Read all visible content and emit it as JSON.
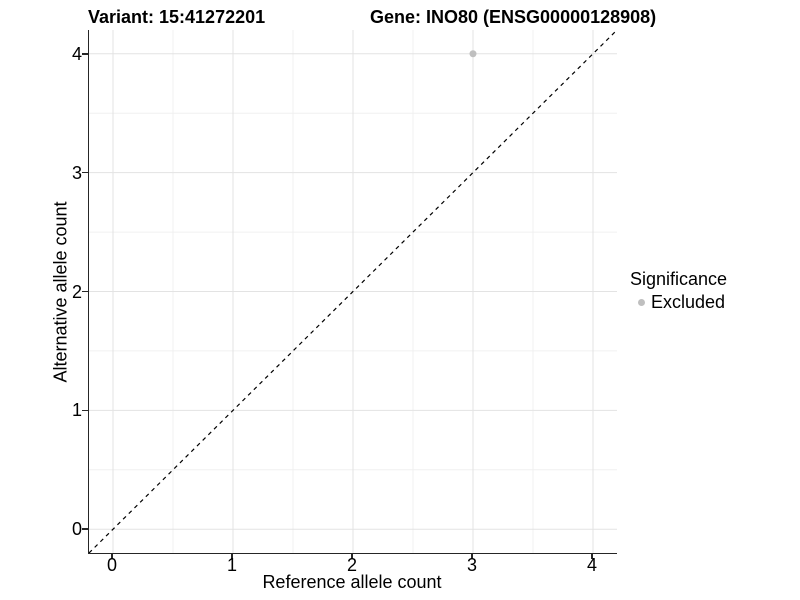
{
  "chart_data": {
    "type": "scatter",
    "title_left": "Variant: 15:41272201",
    "title_right": "Gene: INO80 (ENSG00000128908)",
    "xlabel": "Reference allele count",
    "ylabel": "Alternative allele count",
    "xlim": [
      -0.2,
      4.2
    ],
    "ylim": [
      -0.2,
      4.2
    ],
    "xticks": [
      0,
      1,
      2,
      3,
      4
    ],
    "yticks": [
      0,
      1,
      2,
      3,
      4
    ],
    "x_minor": [
      0.5,
      1.5,
      2.5,
      3.5
    ],
    "y_minor": [
      0.5,
      1.5,
      2.5,
      3.5
    ],
    "grid": "major and minor, on white background",
    "series": [
      {
        "name": "Excluded",
        "color": "#bfbfbf",
        "marker_radius": 3.5,
        "points": [
          [
            3,
            4
          ]
        ]
      }
    ],
    "reference_line": {
      "kind": "identity y=x",
      "from": [
        -0.2,
        -0.2
      ],
      "to": [
        4.2,
        4.2
      ],
      "style": "dashed",
      "color": "#000000"
    },
    "legend": {
      "title": "Significance",
      "position": "right",
      "entries": [
        {
          "label": "Excluded",
          "color": "#bfbfbf"
        }
      ]
    }
  },
  "colors": {
    "grid_major": "#e3e3e3",
    "grid_minor": "#f0f0f0",
    "axis": "#262626",
    "text": "#000000",
    "background": "#ffffff"
  }
}
